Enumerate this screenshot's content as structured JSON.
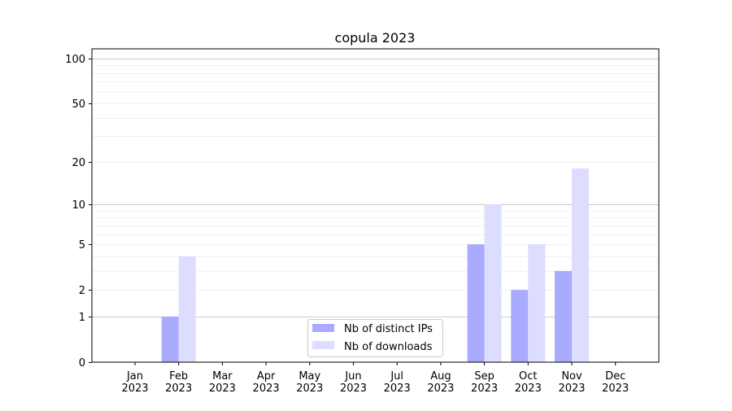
{
  "chart_data": {
    "type": "bar",
    "title": "copula 2023",
    "xlabel": "",
    "ylabel": "",
    "yscale": "log(1+y)",
    "ylim": [
      0,
      116
    ],
    "yticks": [
      0,
      1,
      2,
      5,
      10,
      20,
      50,
      100
    ],
    "grid": true,
    "legend_position": "bottom-center",
    "categories": [
      "Jan\n2023",
      "Feb\n2023",
      "Mar\n2023",
      "Apr\n2023",
      "May\n2023",
      "Jun\n2023",
      "Jul\n2023",
      "Aug\n2023",
      "Sep\n2023",
      "Oct\n2023",
      "Nov\n2023",
      "Dec\n2023"
    ],
    "series": [
      {
        "name": "Nb of distinct IPs",
        "color": "#aaaaff",
        "values": [
          0,
          1,
          0,
          0,
          0,
          0,
          0,
          0,
          5,
          2,
          3,
          0
        ]
      },
      {
        "name": "Nb of downloads",
        "color": "#ddddff",
        "values": [
          0,
          4,
          0,
          0,
          0,
          0,
          0,
          0,
          10,
          5,
          18,
          0
        ]
      }
    ]
  }
}
